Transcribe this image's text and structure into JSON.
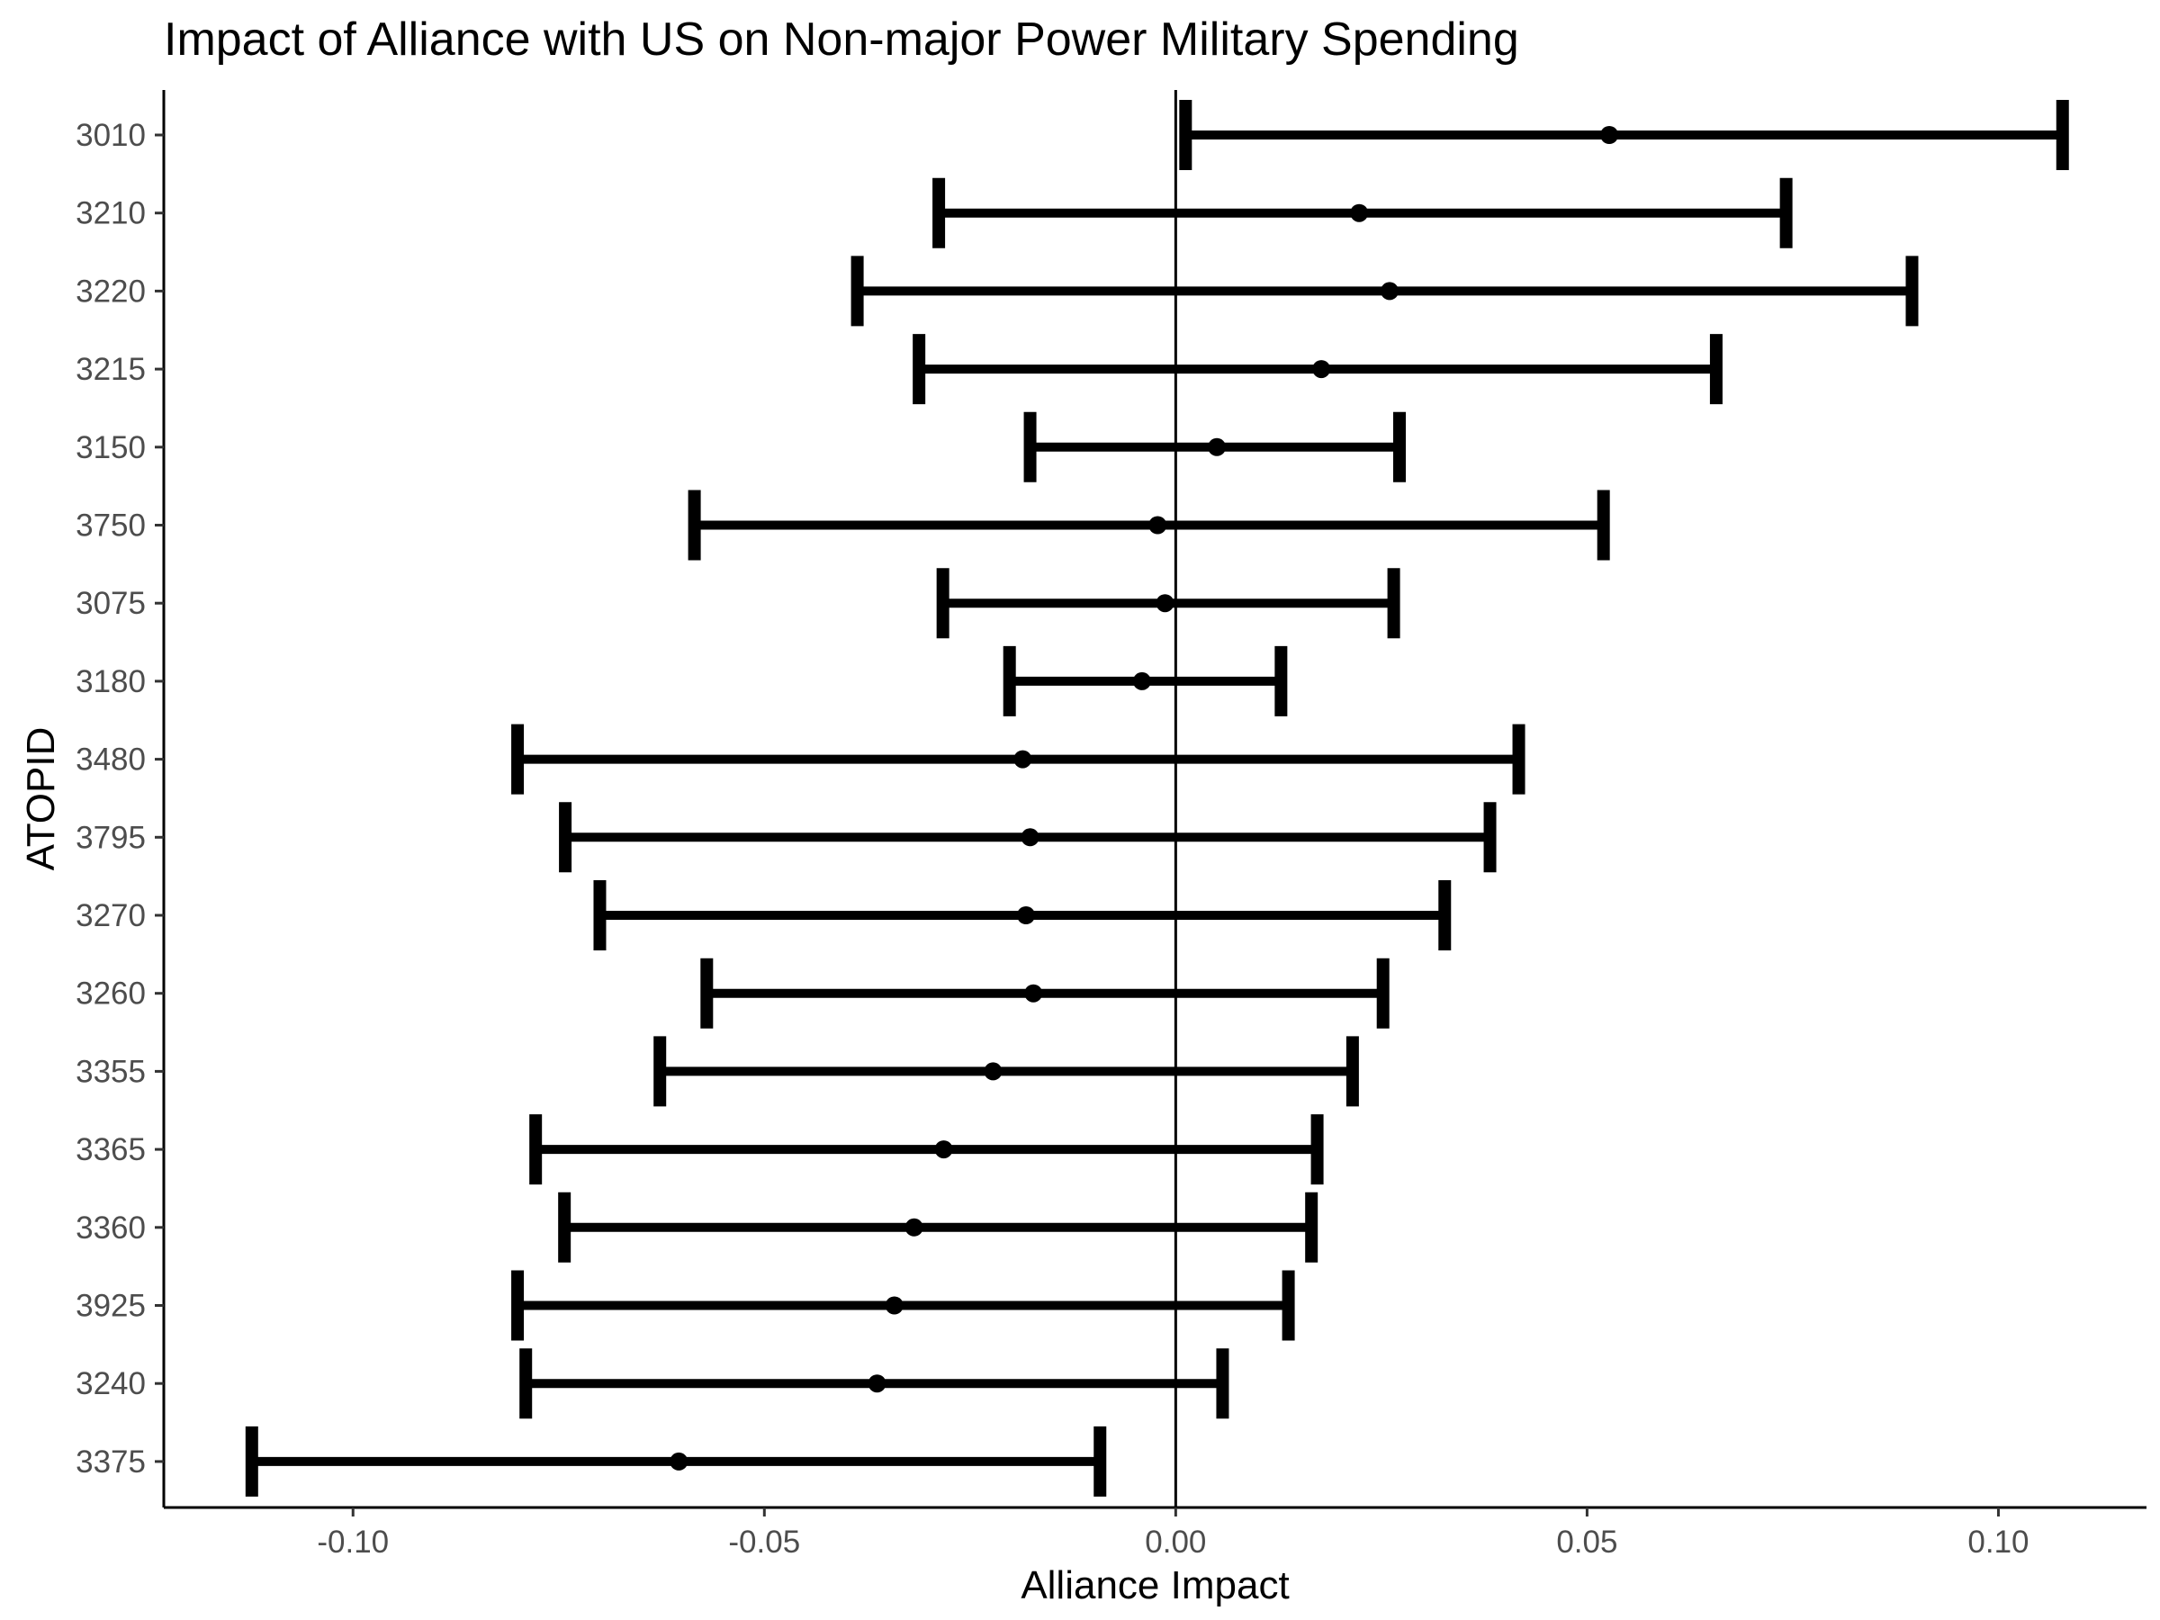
{
  "chart_data": {
    "type": "errorbar",
    "title": "Impact of Alliance with US on Non-major Power Military Spending",
    "xlabel": "Alliance Impact",
    "ylabel": "ATOPID",
    "xlim": [
      -0.123,
      0.118
    ],
    "x_ticks": [
      -0.1,
      -0.05,
      0.0,
      0.05,
      0.1
    ],
    "x_tick_labels": [
      "-0.10",
      "-0.05",
      "0.00",
      "0.05",
      "0.10"
    ],
    "reference_line_x": 0,
    "grid": false,
    "color": "#000000",
    "categories": [
      "3010",
      "3210",
      "3220",
      "3215",
      "3150",
      "3750",
      "3075",
      "3180",
      "3480",
      "3795",
      "3270",
      "3260",
      "3355",
      "3365",
      "3360",
      "3925",
      "3240",
      "3375"
    ],
    "estimates": [
      0.0527,
      0.0223,
      0.026,
      0.0177,
      0.005,
      -0.0022,
      -0.0013,
      -0.0041,
      -0.0186,
      -0.0177,
      -0.0182,
      -0.0173,
      -0.0222,
      -0.0282,
      -0.0318,
      -0.0342,
      -0.0363,
      -0.0604
    ],
    "lower": [
      0.0012,
      -0.0288,
      -0.0387,
      -0.0312,
      -0.0177,
      -0.0585,
      -0.0283,
      -0.0202,
      -0.08,
      -0.0742,
      -0.07,
      -0.057,
      -0.0627,
      -0.0778,
      -0.0743,
      -0.08,
      -0.079,
      -0.1123
    ],
    "upper": [
      0.1078,
      0.0742,
      0.0895,
      0.0657,
      0.0272,
      0.052,
      0.0265,
      0.0128,
      0.0417,
      0.0382,
      0.0327,
      0.0252,
      0.0215,
      0.0172,
      0.0165,
      0.0137,
      0.0057,
      -0.0092
    ]
  }
}
